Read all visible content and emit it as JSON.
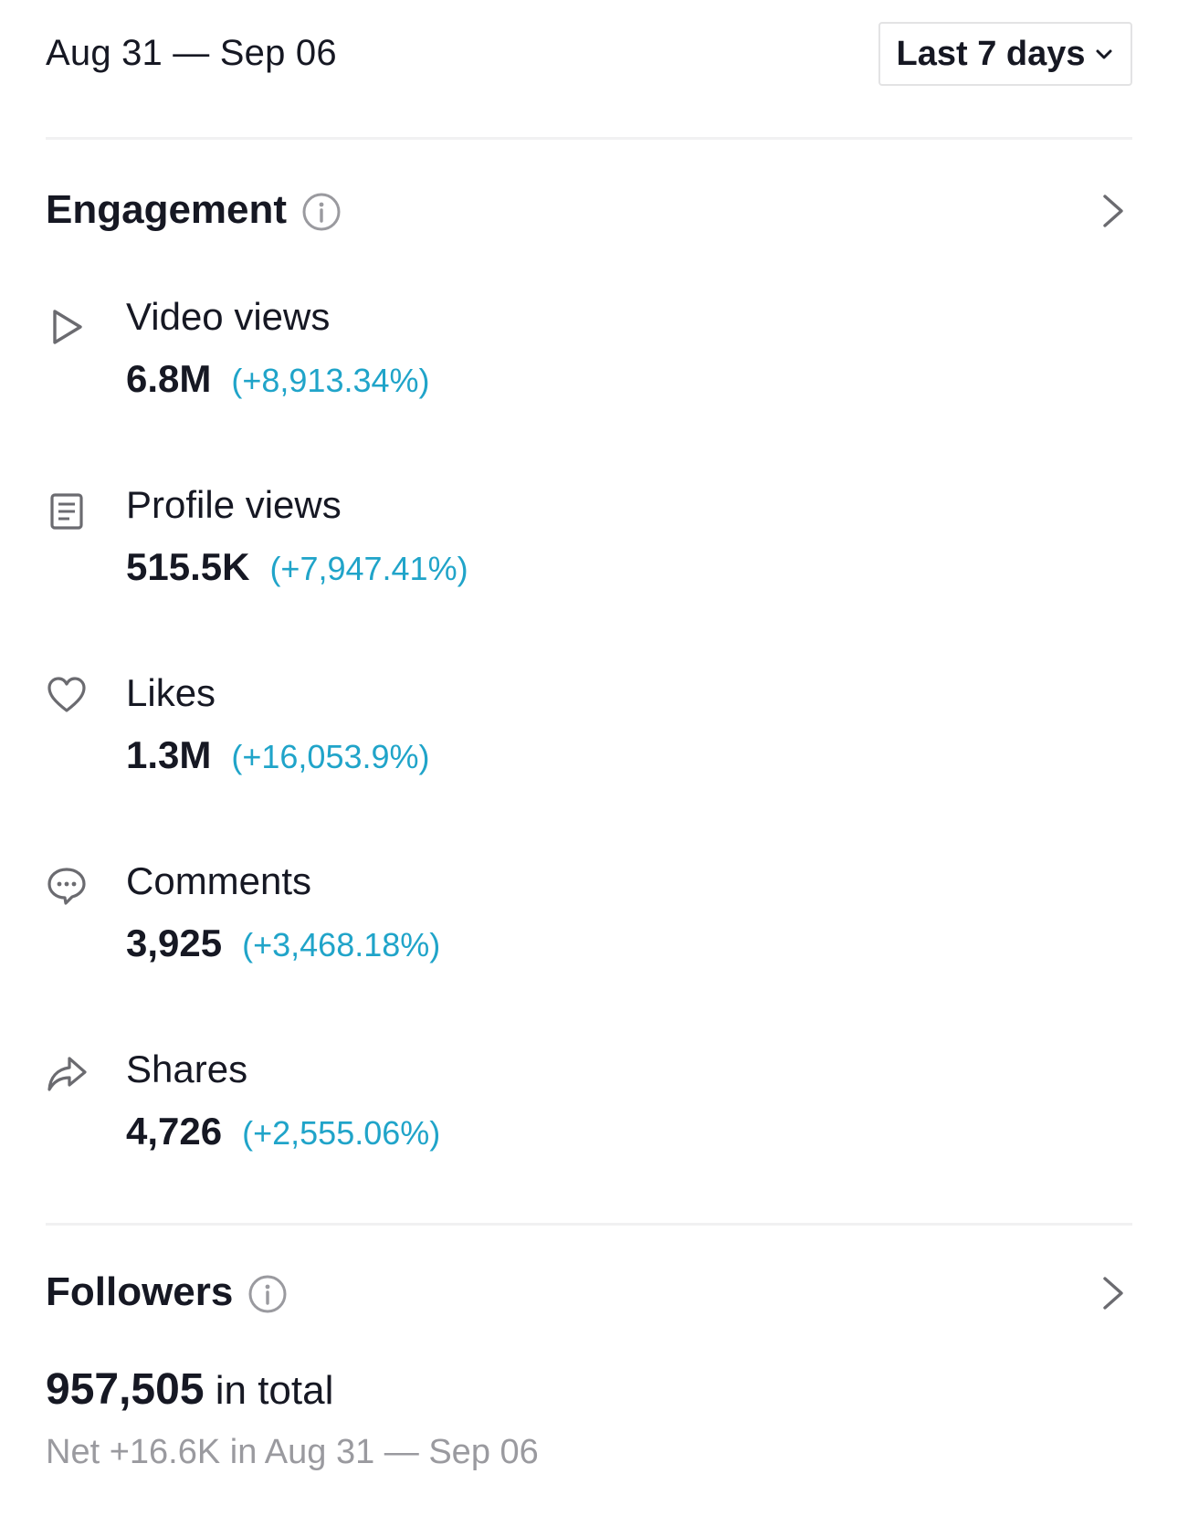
{
  "header": {
    "date_range": "Aug 31 — Sep 06",
    "period_selector": "Last 7 days"
  },
  "engagement": {
    "title": "Engagement",
    "metrics": [
      {
        "icon": "play-icon",
        "label": "Video views",
        "value": "6.8M",
        "change": "(+8,913.34%)"
      },
      {
        "icon": "profile-page-icon",
        "label": "Profile views",
        "value": "515.5K",
        "change": "(+7,947.41%)"
      },
      {
        "icon": "heart-icon",
        "label": "Likes",
        "value": "1.3M",
        "change": "(+16,053.9%)"
      },
      {
        "icon": "comment-icon",
        "label": "Comments",
        "value": "3,925",
        "change": "(+3,468.18%)"
      },
      {
        "icon": "share-icon",
        "label": "Shares",
        "value": "4,726",
        "change": "(+2,555.06%)"
      }
    ]
  },
  "followers": {
    "title": "Followers",
    "total": "957,505",
    "total_suffix": " in total",
    "net": "Net +16.6K in Aug 31 — Sep 06"
  },
  "colors": {
    "text": "#161823",
    "change_positive": "#20a4c9",
    "muted": "#9a9a9f",
    "divider": "#f1f1f2"
  }
}
